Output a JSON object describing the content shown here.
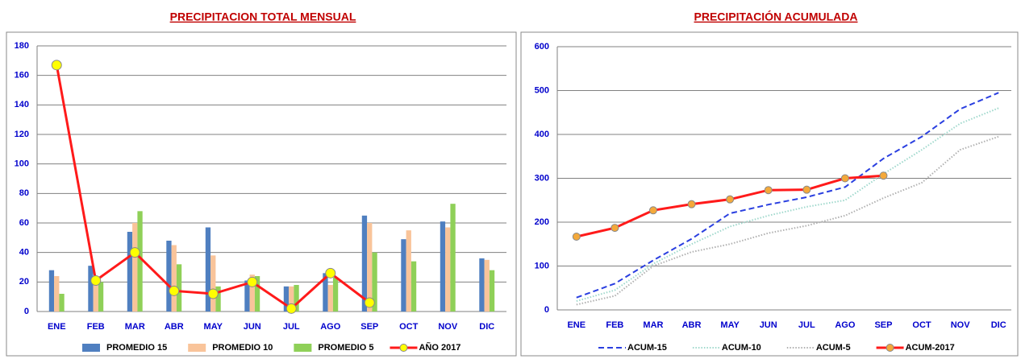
{
  "chart_data": [
    {
      "type": "bar",
      "title": "PRECIPITACION TOTAL MENSUAL",
      "categories": [
        "ENE",
        "FEB",
        "MAR",
        "ABR",
        "MAY",
        "JUN",
        "JUL",
        "AGO",
        "SEP",
        "OCT",
        "NOV",
        "DIC"
      ],
      "ylim": [
        0,
        180
      ],
      "yticks": [
        0,
        20,
        40,
        60,
        80,
        100,
        120,
        140,
        160,
        180
      ],
      "grid": true,
      "series": [
        {
          "name": "PROMEDIO 15",
          "color": "#4f7fc0",
          "values": [
            28,
            31,
            54,
            48,
            57,
            21,
            17,
            26,
            65,
            49,
            61,
            36
          ]
        },
        {
          "name": "PROMEDIO 10",
          "color": "#f9c49a",
          "values": [
            24,
            22,
            60,
            45,
            38,
            25,
            17,
            18,
            60,
            55,
            57,
            35
          ]
        },
        {
          "name": "PROMEDIO 5",
          "color": "#8fd058",
          "values": [
            12,
            20,
            68,
            32,
            17,
            24,
            18,
            23,
            40,
            34,
            73,
            28
          ]
        },
        {
          "name": "AÑO 2017",
          "type": "line",
          "color": "#ff1a1a",
          "marker": "#ffff00",
          "values": [
            167,
            21,
            40,
            14,
            12,
            20,
            2,
            26,
            6,
            null,
            null,
            null
          ]
        }
      ]
    },
    {
      "type": "line",
      "title": "PRECIPITACIÓN ACUMULADA",
      "categories": [
        "ENE",
        "FEB",
        "MAR",
        "ABR",
        "MAY",
        "JUN",
        "JUL",
        "AGO",
        "SEP",
        "OCT",
        "NOV",
        "DIC"
      ],
      "ylim": [
        0,
        600
      ],
      "yticks": [
        0,
        100,
        200,
        300,
        400,
        500,
        600
      ],
      "grid": true,
      "series": [
        {
          "name": "ACUM-15",
          "color": "#2a3fe0",
          "dash": "dashed",
          "values": [
            28,
            60,
            113,
            162,
            220,
            240,
            257,
            280,
            345,
            395,
            458,
            495
          ]
        },
        {
          "name": "ACUM-10",
          "color": "#9fd8cc",
          "dash": "dotted",
          "values": [
            20,
            45,
            105,
            150,
            190,
            215,
            235,
            250,
            310,
            365,
            425,
            460
          ]
        },
        {
          "name": "ACUM-5",
          "color": "#b0b0b0",
          "dash": "dotted",
          "values": [
            12,
            32,
            100,
            132,
            150,
            175,
            192,
            215,
            255,
            290,
            365,
            395
          ]
        },
        {
          "name": "ACUM-2017",
          "color": "#ff1a1a",
          "marker": "#f4a93a",
          "values": [
            167,
            187,
            227,
            241,
            252,
            273,
            274,
            300,
            306,
            null,
            null,
            null
          ]
        }
      ]
    }
  ]
}
